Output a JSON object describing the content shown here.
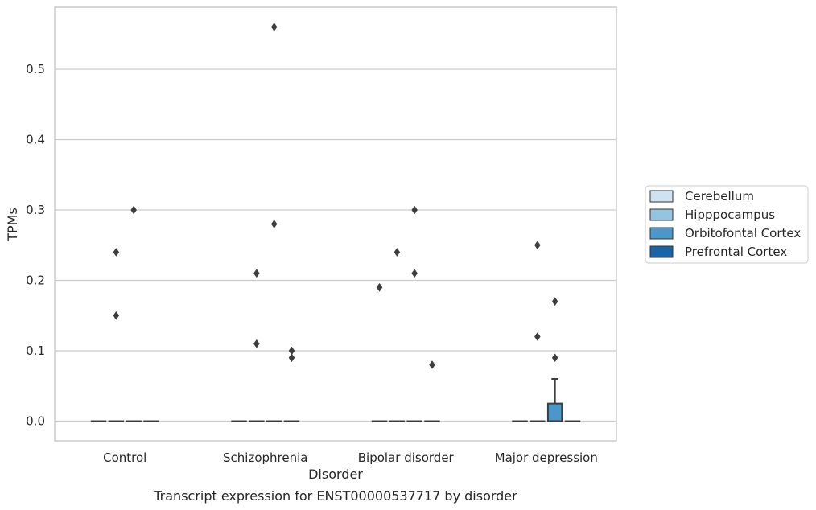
{
  "chart_data": {
    "type": "box",
    "title": "Transcript expression for ENST00000537717 by disorder",
    "xlabel": "Disorder",
    "ylabel": "TPMs",
    "categories": [
      "Control",
      "Schizophrenia",
      "Bipolar disorder",
      "Major depression"
    ],
    "ylim": [
      -0.028,
      0.588
    ],
    "yticks": [
      "0.0",
      "0.1",
      "0.2",
      "0.3",
      "0.4",
      "0.5"
    ],
    "grid": "horizontal",
    "legend_position": "right",
    "legend": [
      {
        "name": "Cerebellum",
        "color": "#d0e1f2"
      },
      {
        "name": "Hipppocampus",
        "color": "#94c4df"
      },
      {
        "name": "Orbitofontal Cortex",
        "color": "#4a98c9"
      },
      {
        "name": "Prefrontal Cortex",
        "color": "#1764ab"
      }
    ],
    "boxes": [
      {
        "category": "Control",
        "series": "Cerebellum",
        "q1": 0,
        "median": 0,
        "q3": 0,
        "whisker_low": 0,
        "whisker_high": 0
      },
      {
        "category": "Control",
        "series": "Hipppocampus",
        "q1": 0,
        "median": 0,
        "q3": 0,
        "whisker_low": 0,
        "whisker_high": 0
      },
      {
        "category": "Control",
        "series": "Orbitofontal Cortex",
        "q1": 0,
        "median": 0,
        "q3": 0,
        "whisker_low": 0,
        "whisker_high": 0
      },
      {
        "category": "Control",
        "series": "Prefrontal Cortex",
        "q1": 0,
        "median": 0,
        "q3": 0,
        "whisker_low": 0,
        "whisker_high": 0
      },
      {
        "category": "Schizophrenia",
        "series": "Cerebellum",
        "q1": 0,
        "median": 0,
        "q3": 0,
        "whisker_low": 0,
        "whisker_high": 0
      },
      {
        "category": "Schizophrenia",
        "series": "Hipppocampus",
        "q1": 0,
        "median": 0,
        "q3": 0,
        "whisker_low": 0,
        "whisker_high": 0
      },
      {
        "category": "Schizophrenia",
        "series": "Orbitofontal Cortex",
        "q1": 0,
        "median": 0,
        "q3": 0,
        "whisker_low": 0,
        "whisker_high": 0
      },
      {
        "category": "Schizophrenia",
        "series": "Prefrontal Cortex",
        "q1": 0,
        "median": 0,
        "q3": 0,
        "whisker_low": 0,
        "whisker_high": 0
      },
      {
        "category": "Bipolar disorder",
        "series": "Cerebellum",
        "q1": 0,
        "median": 0,
        "q3": 0,
        "whisker_low": 0,
        "whisker_high": 0
      },
      {
        "category": "Bipolar disorder",
        "series": "Hipppocampus",
        "q1": 0,
        "median": 0,
        "q3": 0,
        "whisker_low": 0,
        "whisker_high": 0
      },
      {
        "category": "Bipolar disorder",
        "series": "Orbitofontal Cortex",
        "q1": 0,
        "median": 0,
        "q3": 0,
        "whisker_low": 0,
        "whisker_high": 0
      },
      {
        "category": "Bipolar disorder",
        "series": "Prefrontal Cortex",
        "q1": 0,
        "median": 0,
        "q3": 0,
        "whisker_low": 0,
        "whisker_high": 0
      },
      {
        "category": "Major depression",
        "series": "Cerebellum",
        "q1": 0,
        "median": 0,
        "q3": 0,
        "whisker_low": 0,
        "whisker_high": 0
      },
      {
        "category": "Major depression",
        "series": "Hipppocampus",
        "q1": 0,
        "median": 0,
        "q3": 0,
        "whisker_low": 0,
        "whisker_high": 0
      },
      {
        "category": "Major depression",
        "series": "Orbitofontal Cortex",
        "q1": 0,
        "median": 0,
        "q3": 0.025,
        "whisker_low": 0,
        "whisker_high": 0.06
      },
      {
        "category": "Major depression",
        "series": "Prefrontal Cortex",
        "q1": 0,
        "median": 0,
        "q3": 0,
        "whisker_low": 0,
        "whisker_high": 0
      }
    ],
    "outliers": [
      {
        "category": "Control",
        "series": "Hipppocampus",
        "values": [
          0.24,
          0.15
        ]
      },
      {
        "category": "Control",
        "series": "Orbitofontal Cortex",
        "values": [
          0.3
        ]
      },
      {
        "category": "Schizophrenia",
        "series": "Hipppocampus",
        "values": [
          0.21,
          0.11
        ]
      },
      {
        "category": "Schizophrenia",
        "series": "Orbitofontal Cortex",
        "values": [
          0.56,
          0.28
        ]
      },
      {
        "category": "Schizophrenia",
        "series": "Prefrontal Cortex",
        "values": [
          0.1,
          0.09
        ]
      },
      {
        "category": "Bipolar disorder",
        "series": "Cerebellum",
        "values": [
          0.19
        ]
      },
      {
        "category": "Bipolar disorder",
        "series": "Hipppocampus",
        "values": [
          0.24
        ]
      },
      {
        "category": "Bipolar disorder",
        "series": "Orbitofontal Cortex",
        "values": [
          0.3,
          0.21
        ]
      },
      {
        "category": "Bipolar disorder",
        "series": "Prefrontal Cortex",
        "values": [
          0.08
        ]
      },
      {
        "category": "Major depression",
        "series": "Hipppocampus",
        "values": [
          0.25,
          0.12
        ]
      },
      {
        "category": "Major depression",
        "series": "Orbitofontal Cortex",
        "values": [
          0.17,
          0.09
        ]
      }
    ]
  }
}
